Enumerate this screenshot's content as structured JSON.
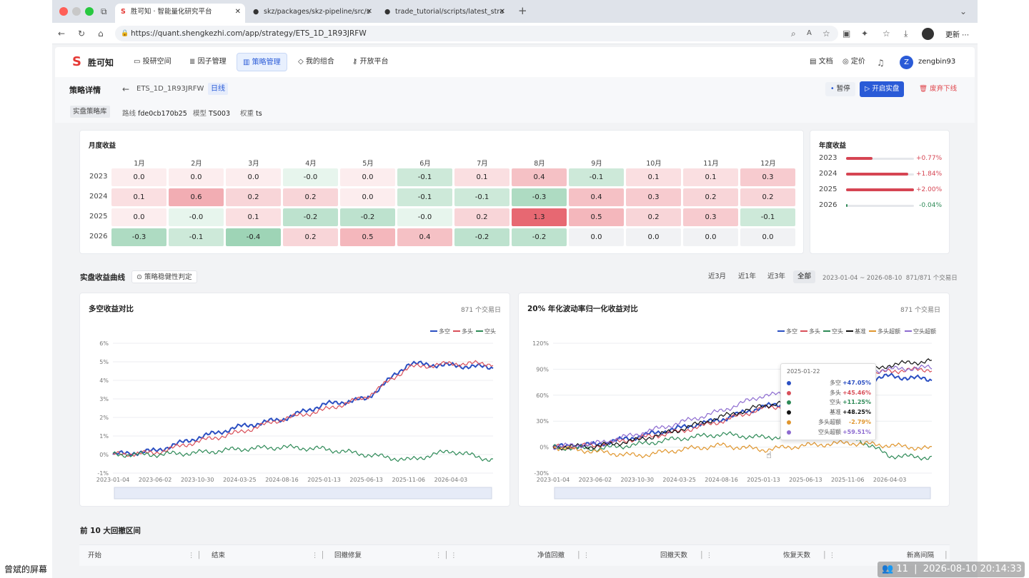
{
  "browser": {
    "tabs": [
      {
        "title": "胜可知 · 智能量化研究平台"
      },
      {
        "title": "skz/packages/skz-pipeline/src/s"
      },
      {
        "title": "trade_tutorial/scripts/latest_stra"
      }
    ],
    "url": "https://quant.shengkezhi.com/app/strategy/ETS_1D_1R93JRFW",
    "update_label": "更新"
  },
  "nav": {
    "brand": "胜可知",
    "items": [
      "投研空间",
      "因子管理",
      "策略管理",
      "我的组合",
      "开放平台"
    ],
    "docs": "文档",
    "pricing": "定价",
    "user_initial": "Z",
    "user": "zengbin93"
  },
  "header": {
    "title": "策略详情",
    "strategy_id": "ETS_1D_1R93JRFW",
    "freq": "日线",
    "pause": "暂停",
    "start_live": "开启实盘",
    "abandon": "废弃下线",
    "lib": "实盘策略库",
    "route_label": "路线",
    "route": "fde0cb170b25",
    "model_label": "模型",
    "model": "TS003",
    "weight_label": "权重",
    "weight": "ts"
  },
  "monthly": {
    "title": "月度收益",
    "months": [
      "1月",
      "2月",
      "3月",
      "4月",
      "5月",
      "6月",
      "7月",
      "8月",
      "9月",
      "10月",
      "11月",
      "12月"
    ],
    "rows": [
      {
        "year": "2023",
        "values": [
          "0.0",
          "0.0",
          "0.0",
          "-0.0",
          "0.0",
          "-0.1",
          "0.1",
          "0.4",
          "-0.1",
          "0.1",
          "0.1",
          "0.3"
        ]
      },
      {
        "year": "2024",
        "values": [
          "0.1",
          "0.6",
          "0.2",
          "0.2",
          "0.0",
          "-0.1",
          "-0.1",
          "-0.3",
          "0.4",
          "0.3",
          "0.2",
          "0.2"
        ]
      },
      {
        "year": "2025",
        "values": [
          "0.0",
          "-0.0",
          "0.1",
          "-0.2",
          "-0.2",
          "-0.0",
          "0.2",
          "1.3",
          "0.5",
          "0.2",
          "0.3",
          "-0.1"
        ]
      },
      {
        "year": "2026",
        "values": [
          "-0.3",
          "-0.1",
          "-0.4",
          "0.2",
          "0.5",
          "0.4",
          "-0.2",
          "-0.2",
          "0.0",
          "0.0",
          "0.0",
          "0.0"
        ]
      }
    ]
  },
  "annual": {
    "title": "年度收益",
    "rows": [
      {
        "year": "2023",
        "text": "+0.77%",
        "value": 0.77
      },
      {
        "year": "2024",
        "text": "+1.84%",
        "value": 1.84
      },
      {
        "year": "2025",
        "text": "+2.00%",
        "value": 2.0
      },
      {
        "year": "2026",
        "text": "-0.04%",
        "value": -0.04
      }
    ]
  },
  "curve": {
    "title": "实盘收益曲线",
    "robust": "策略稳健性判定",
    "ranges": [
      "近3月",
      "近1年",
      "近3年",
      "全部"
    ],
    "period": "2023-01-04 ~ 2026-08-10",
    "days": "871/871 个交易日"
  },
  "chart_data": [
    {
      "type": "line",
      "title": "多空收益对比",
      "subtitle": "871 个交易日",
      "x": [
        "2023-01-04",
        "2023-06-02",
        "2023-10-30",
        "2024-03-25",
        "2024-08-16",
        "2025-01-13",
        "2025-06-13",
        "2025-11-06",
        "2026-04-03",
        "2026-08-10"
      ],
      "ytick_labels": [
        "-1%",
        "0%",
        "1%",
        "2%",
        "3%",
        "4%",
        "5%",
        "6%"
      ],
      "ylim": [
        -1,
        6
      ],
      "series": [
        {
          "name": "多空",
          "color": "#2b4fc2",
          "values": [
            0.0,
            0.2,
            0.9,
            1.5,
            1.9,
            2.7,
            3.0,
            4.9,
            4.8,
            4.7
          ]
        },
        {
          "name": "多头",
          "color": "#d9505a",
          "values": [
            0.0,
            0.1,
            0.7,
            1.2,
            1.9,
            2.4,
            3.1,
            4.7,
            4.9,
            4.9
          ]
        },
        {
          "name": "空头",
          "color": "#2e8a57",
          "values": [
            0.0,
            0.0,
            0.1,
            0.3,
            0.4,
            0.3,
            0.0,
            -0.3,
            0.2,
            -0.3
          ]
        }
      ]
    },
    {
      "type": "line",
      "title": "20% 年化波动率归一化收益对比",
      "subtitle": "871 个交易日",
      "x": [
        "2023-01-04",
        "2023-06-02",
        "2023-10-30",
        "2024-03-25",
        "2024-08-16",
        "2025-01-13",
        "2025-06-13",
        "2025-11-06",
        "2026-04-03",
        "2026-08-10"
      ],
      "ytick_labels": [
        "-30%",
        "0%",
        "30%",
        "60%",
        "90%",
        "120%"
      ],
      "ylim": [
        -30,
        120
      ],
      "series": [
        {
          "name": "多空",
          "color": "#2b4fc2",
          "values": [
            0,
            3,
            12,
            22,
            32,
            47,
            52,
            75,
            82,
            78
          ]
        },
        {
          "name": "多头",
          "color": "#d9505a",
          "values": [
            0,
            2,
            10,
            18,
            30,
            45,
            50,
            78,
            88,
            90
          ]
        },
        {
          "name": "空头",
          "color": "#2e8a57",
          "values": [
            0,
            -2,
            3,
            10,
            15,
            11,
            14,
            15,
            -10,
            -12
          ]
        },
        {
          "name": "基准",
          "color": "#111111",
          "values": [
            0,
            1,
            8,
            20,
            35,
            48,
            55,
            80,
            95,
            100
          ]
        },
        {
          "name": "多头超额",
          "color": "#e0962e",
          "values": [
            0,
            -5,
            -10,
            -3,
            2,
            -3,
            2,
            5,
            2,
            -2
          ]
        },
        {
          "name": "空头超额",
          "color": "#8d6bd0",
          "values": [
            0,
            4,
            15,
            28,
            42,
            60,
            62,
            85,
            90,
            92
          ]
        }
      ],
      "tooltip": {
        "date": "2025-01-22",
        "values": [
          "+47.05%",
          "+45.46%",
          "+11.25%",
          "+48.25%",
          "-2.79%",
          "+59.51%"
        ]
      }
    }
  ],
  "drawdown": {
    "title": "前 10 大回撤区间",
    "columns": [
      "开始",
      "结束",
      "回撤修复",
      "净值回撤",
      "回撤天数",
      "恢复天数",
      "新高间隔"
    ]
  },
  "overlay": {
    "screen": "曾斌的屏幕",
    "count": "11",
    "datetime": "2026-08-10 20:14:33"
  }
}
